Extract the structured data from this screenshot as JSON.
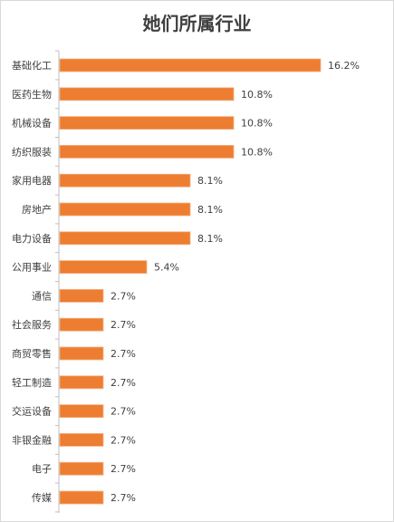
{
  "chart_data": {
    "type": "bar",
    "orientation": "horizontal",
    "title": "她们所属行业",
    "categories": [
      "基础化工",
      "医药生物",
      "机械设备",
      "纺织服装",
      "家用电器",
      "房地产",
      "电力设备",
      "公用事业",
      "通信",
      "社会服务",
      "商贸零售",
      "轻工制造",
      "交运设备",
      "非银金融",
      "电子",
      "传媒"
    ],
    "values": [
      16.2,
      10.8,
      10.8,
      10.8,
      8.1,
      8.1,
      8.1,
      5.4,
      2.7,
      2.7,
      2.7,
      2.7,
      2.7,
      2.7,
      2.7,
      2.7
    ],
    "value_labels": [
      "16.2%",
      "10.8%",
      "10.8%",
      "10.8%",
      "8.1%",
      "8.1%",
      "8.1%",
      "5.4%",
      "2.7%",
      "2.7%",
      "2.7%",
      "2.7%",
      "2.7%",
      "2.7%",
      "2.7%",
      "2.7%"
    ],
    "xlim": [
      0,
      16.2
    ],
    "grid": false,
    "legend": "none",
    "colors": {
      "bar": "#ED7D31",
      "bar_edge": "#F4B183",
      "axis": "#BFBFBF",
      "text": "#404040"
    }
  }
}
